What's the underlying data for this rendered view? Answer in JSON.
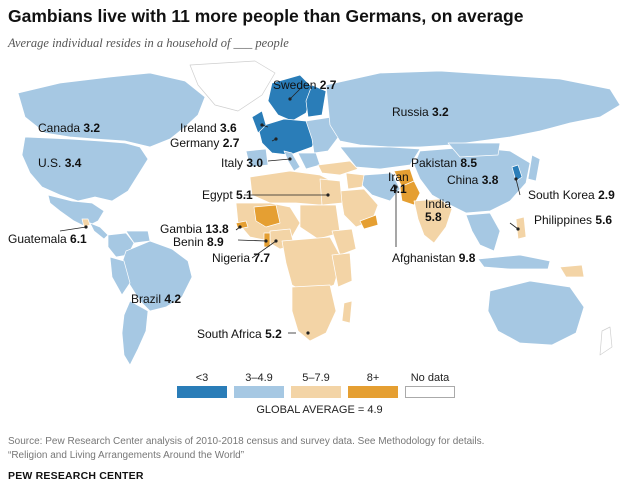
{
  "title": "Gambians live with 11 more people than Germans, on average",
  "subtitle": "Average individual resides in a household of ___ people",
  "colors": {
    "lt3": "#2a7db8",
    "c3to49": "#a6c8e3",
    "c5to79": "#f3d4a6",
    "c8plus": "#e59f32",
    "nodata": "#ffffff"
  },
  "countries": [
    {
      "name": "Sweden",
      "value": "2.7"
    },
    {
      "name": "Russia",
      "value": "3.2"
    },
    {
      "name": "Canada",
      "value": "3.2"
    },
    {
      "name": "Ireland",
      "value": "3.6"
    },
    {
      "name": "Germany",
      "value": "2.7"
    },
    {
      "name": "U.S.",
      "value": "3.4"
    },
    {
      "name": "Italy",
      "value": "3.0"
    },
    {
      "name": "Pakistan",
      "value": "8.5"
    },
    {
      "name": "Iran",
      "value": "4.1"
    },
    {
      "name": "China",
      "value": "3.8"
    },
    {
      "name": "Egypt",
      "value": "5.1"
    },
    {
      "name": "South Korea",
      "value": "2.9"
    },
    {
      "name": "India",
      "value": "5.8"
    },
    {
      "name": "Gambia",
      "value": "13.8"
    },
    {
      "name": "Benin",
      "value": "8.9"
    },
    {
      "name": "Philippines",
      "value": "5.6"
    },
    {
      "name": "Guatemala",
      "value": "6.1"
    },
    {
      "name": "Nigeria",
      "value": "7.7"
    },
    {
      "name": "Afghanistan",
      "value": "9.8"
    },
    {
      "name": "Brazil",
      "value": "4.2"
    },
    {
      "name": "South Africa",
      "value": "5.2"
    }
  ],
  "legend": [
    {
      "label": "<3"
    },
    {
      "label": "3–4.9"
    },
    {
      "label": "5–7.9"
    },
    {
      "label": "8+"
    },
    {
      "label": "No data"
    }
  ],
  "global_average": "GLOBAL AVERAGE = 4.9",
  "source": "Source: Pew Research Center analysis of 2010-2018 census and survey data. See Methodology for details.",
  "report": "“Religion and Living Arrangements Around the World”",
  "brand": "PEW RESEARCH CENTER"
}
